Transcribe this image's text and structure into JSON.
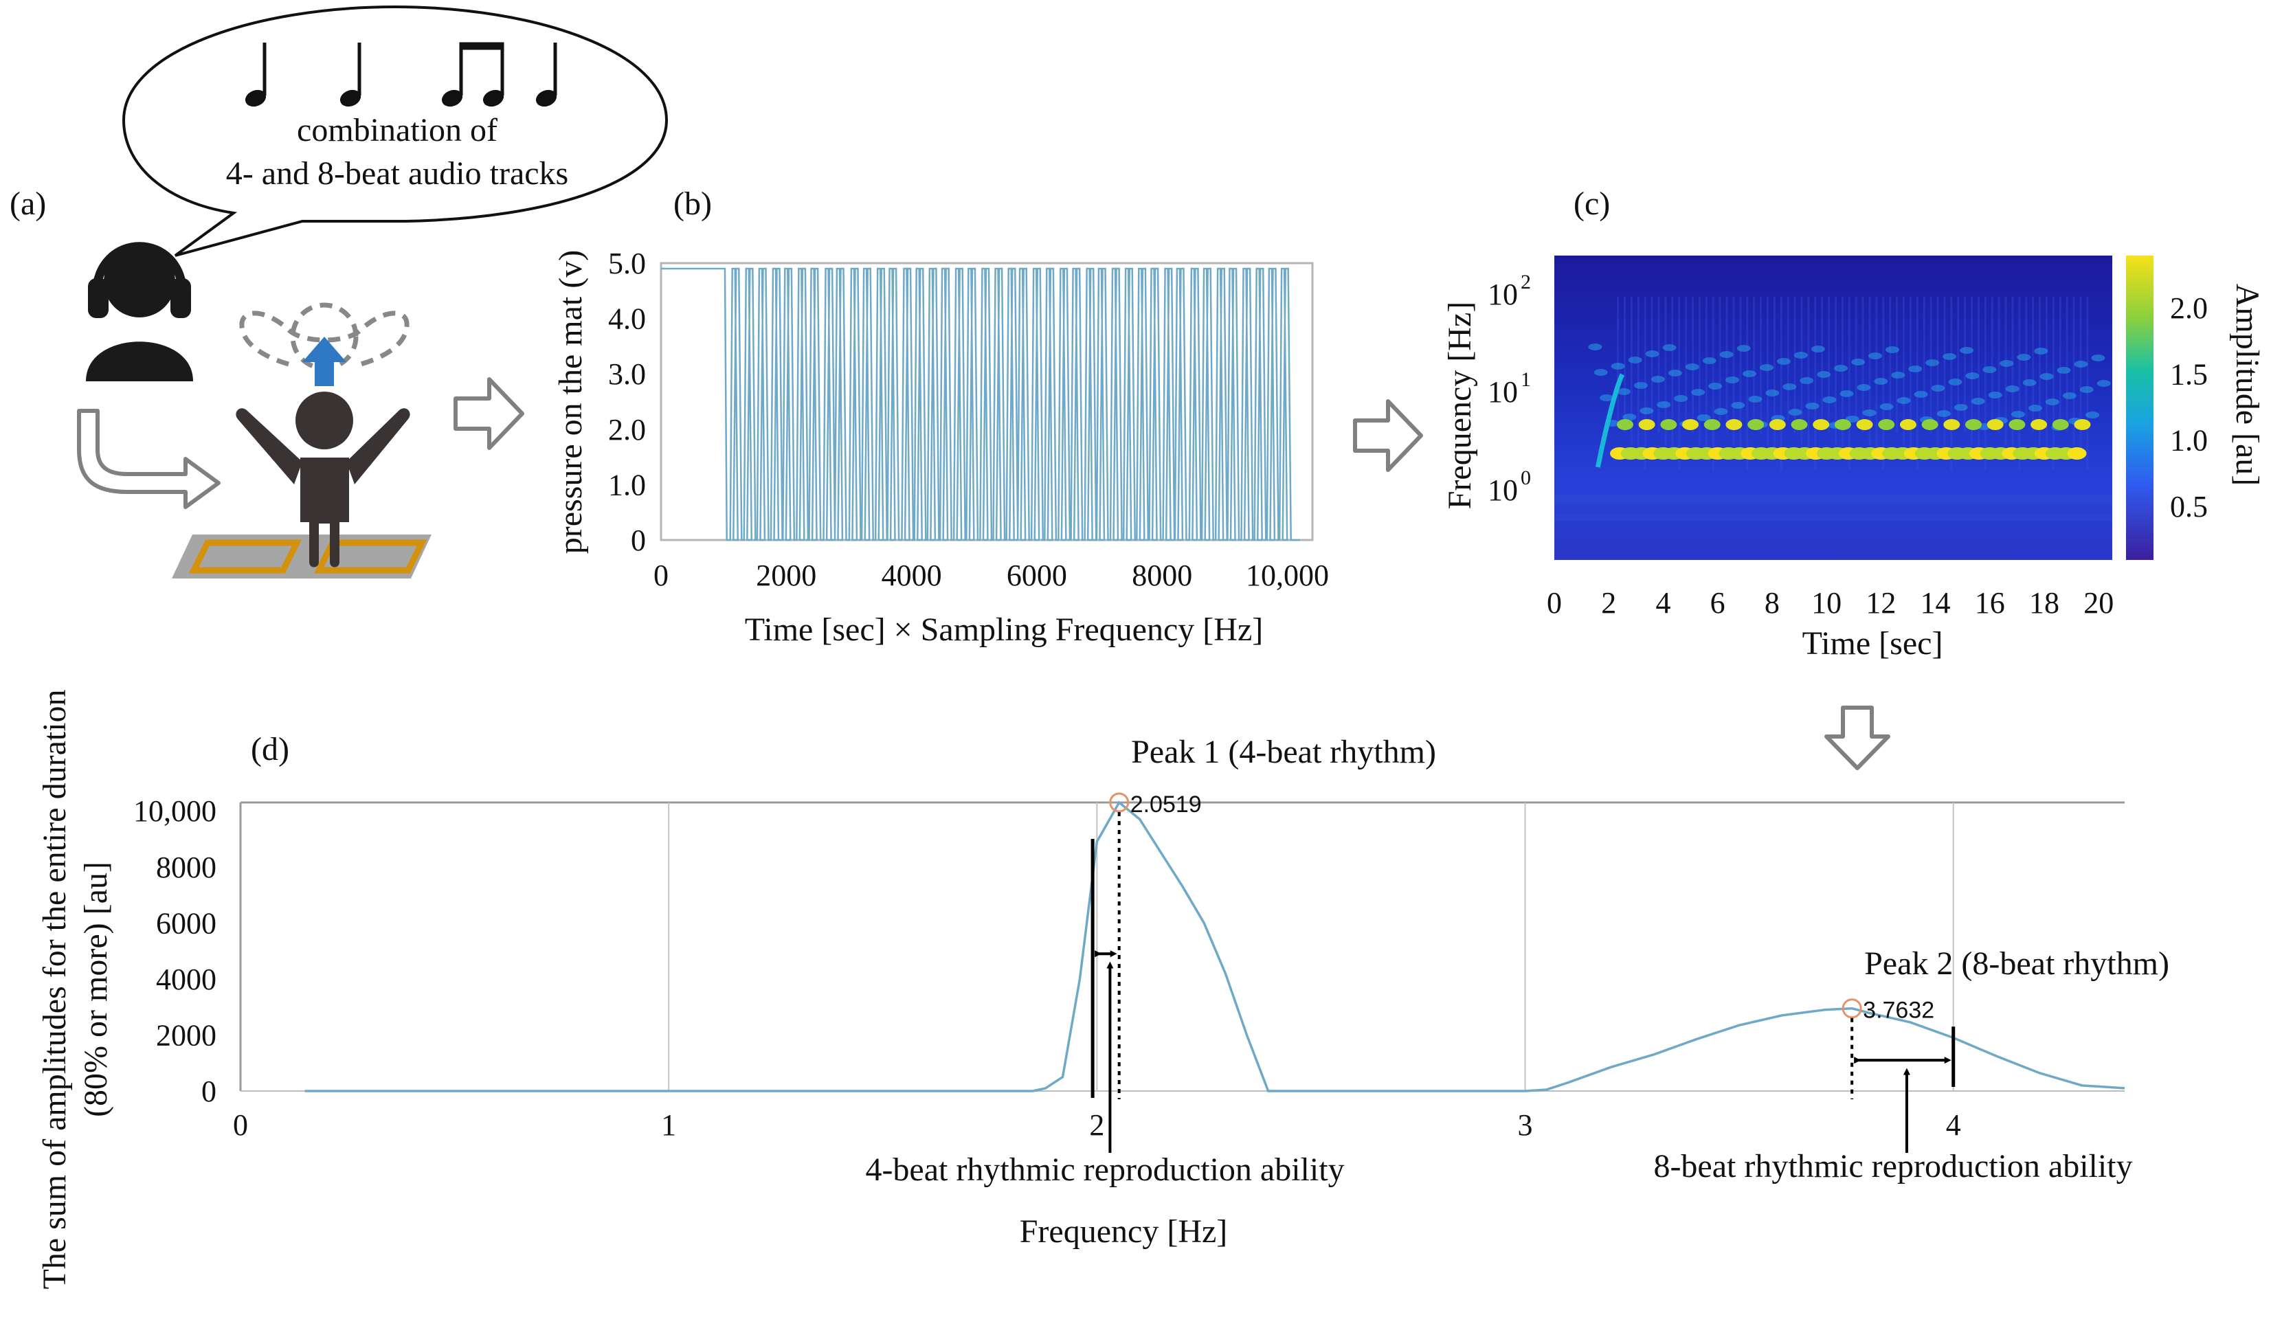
{
  "panels": {
    "a": {
      "label": "(a)",
      "bubble_line1": "combination of",
      "bubble_line2": "4- and 8-beat audio tracks"
    },
    "b": {
      "label": "(b)"
    },
    "c": {
      "label": "(c)"
    },
    "d": {
      "label": "(d)"
    }
  },
  "colors": {
    "trace": "#6fa9c8",
    "mat_outline": "#d4920c",
    "mat": "#a6a6a6",
    "figure": "#3a3334",
    "blue_arrow": "#2f78c4",
    "arrow_gray": "#808080",
    "peak_marker": "#e8926a"
  },
  "chart_data": [
    {
      "id": "b",
      "type": "line",
      "xlabel": "Time [sec] × Sampling Frequency [Hz]",
      "ylabel": "pressure on the mat (v)",
      "xlim": [
        0,
        10400
      ],
      "ylim": [
        0,
        5.0
      ],
      "x_ticks": [
        {
          "value": 0,
          "label": "0"
        },
        {
          "value": 2000,
          "label": "2000"
        },
        {
          "value": 4000,
          "label": "4000"
        },
        {
          "value": 6000,
          "label": "6000"
        },
        {
          "value": 8000,
          "label": "8000"
        },
        {
          "value": 10000,
          "label": "10,000"
        }
      ],
      "y_ticks": [
        {
          "value": 0,
          "label": "0"
        },
        {
          "value": 1.0,
          "label": "1.0"
        },
        {
          "value": 2.0,
          "label": "2.0"
        },
        {
          "value": 3.0,
          "label": "3.0"
        },
        {
          "value": 4.0,
          "label": "4.0"
        },
        {
          "value": 5.0,
          "label": "5.0"
        }
      ],
      "series": [
        {
          "high_level": 4.9,
          "low_level": 0,
          "x_start": 0,
          "x_end": 10200,
          "first_drop": 1050,
          "pulse_times": [
            1050,
            1270,
            1480,
            1700,
            1890,
            2110,
            2310,
            2540,
            2720,
            2950,
            3150,
            3370,
            3560,
            3790,
            3990,
            4200,
            4400,
            4620,
            4820,
            5040,
            5250,
            5460,
            5640,
            5860,
            6070,
            6290,
            6490,
            6710,
            6900,
            7120,
            7330,
            7540,
            7740,
            7960,
            8150,
            8380,
            8580,
            8800,
            8990,
            9210,
            9420,
            9620,
            9820
          ]
        }
      ]
    },
    {
      "id": "c",
      "type": "heatmap",
      "xlabel": "Time [sec]",
      "ylabel": "Frequency [Hz]",
      "colorbar_label": "Amplitude [au]",
      "xlim": [
        0,
        20.5
      ],
      "y_scale": "log",
      "x_ticks": [
        "0",
        "2",
        "4",
        "6",
        "8",
        "10",
        "12",
        "14",
        "16",
        "18",
        "20"
      ],
      "y_ticks": [
        {
          "base": "10",
          "exp": "2"
        },
        {
          "base": "10",
          "exp": "1"
        },
        {
          "base": "10",
          "exp": "0"
        }
      ],
      "colorbar_ticks": [
        "2.0",
        "1.5",
        "1.0",
        "0.5"
      ],
      "colorbar_range": [
        0.1,
        2.4
      ]
    },
    {
      "id": "d",
      "type": "line",
      "xlabel": "Frequency [Hz]",
      "ylabel_line1": "The sum of amplitudes for the entire duration",
      "ylabel_line2": "(80% or more) [au]",
      "xlim": [
        0,
        4.4
      ],
      "ylim": [
        0,
        10300
      ],
      "x_ticks": [
        {
          "value": 0,
          "label": "0"
        },
        {
          "value": 1,
          "label": "1"
        },
        {
          "value": 2,
          "label": "2"
        },
        {
          "value": 3,
          "label": "3"
        },
        {
          "value": 4,
          "label": "4"
        }
      ],
      "y_ticks": [
        {
          "value": 0,
          "label": "0"
        },
        {
          "value": 2000,
          "label": "2000"
        },
        {
          "value": 4000,
          "label": "4000"
        },
        {
          "value": 6000,
          "label": "6000"
        },
        {
          "value": 8000,
          "label": "8000"
        },
        {
          "value": 10000,
          "label": "10,000"
        }
      ],
      "series": [
        {
          "x": [
            0.15,
            1.85,
            1.88,
            1.92,
            1.96,
            2.0,
            2.0519,
            2.1,
            2.15,
            2.2,
            2.25,
            2.3,
            2.35,
            2.38,
            2.4,
            3.0,
            3.05,
            3.1,
            3.2,
            3.3,
            3.4,
            3.5,
            3.6,
            3.7,
            3.7632,
            3.8,
            3.9,
            4.0,
            4.1,
            4.2,
            4.3,
            4.4
          ],
          "y": [
            0,
            0,
            100,
            500,
            4000,
            8900,
            10300,
            9700,
            8500,
            7300,
            6000,
            4200,
            2000,
            800,
            0,
            0,
            50,
            300,
            850,
            1300,
            1850,
            2350,
            2700,
            2900,
            2950,
            2800,
            2450,
            1900,
            1250,
            650,
            200,
            100
          ]
        }
      ],
      "peaks": [
        {
          "label": "Peak 1 (4-beat rhythm)",
          "x": 2.0519,
          "y": 10300,
          "value_label": "2.0519"
        },
        {
          "label": "Peak 2 (8-beat rhythm)",
          "x": 3.7632,
          "y": 2950,
          "value_label": "3.7632"
        }
      ],
      "annotations": [
        {
          "text": "4-beat rhythmic reproduction ability",
          "solid_x": 1.99,
          "dotted_x": 2.0519
        },
        {
          "text": "8-beat rhythmic reproduction ability",
          "solid_x": 4.0,
          "dotted_x": 3.7632
        }
      ]
    }
  ]
}
